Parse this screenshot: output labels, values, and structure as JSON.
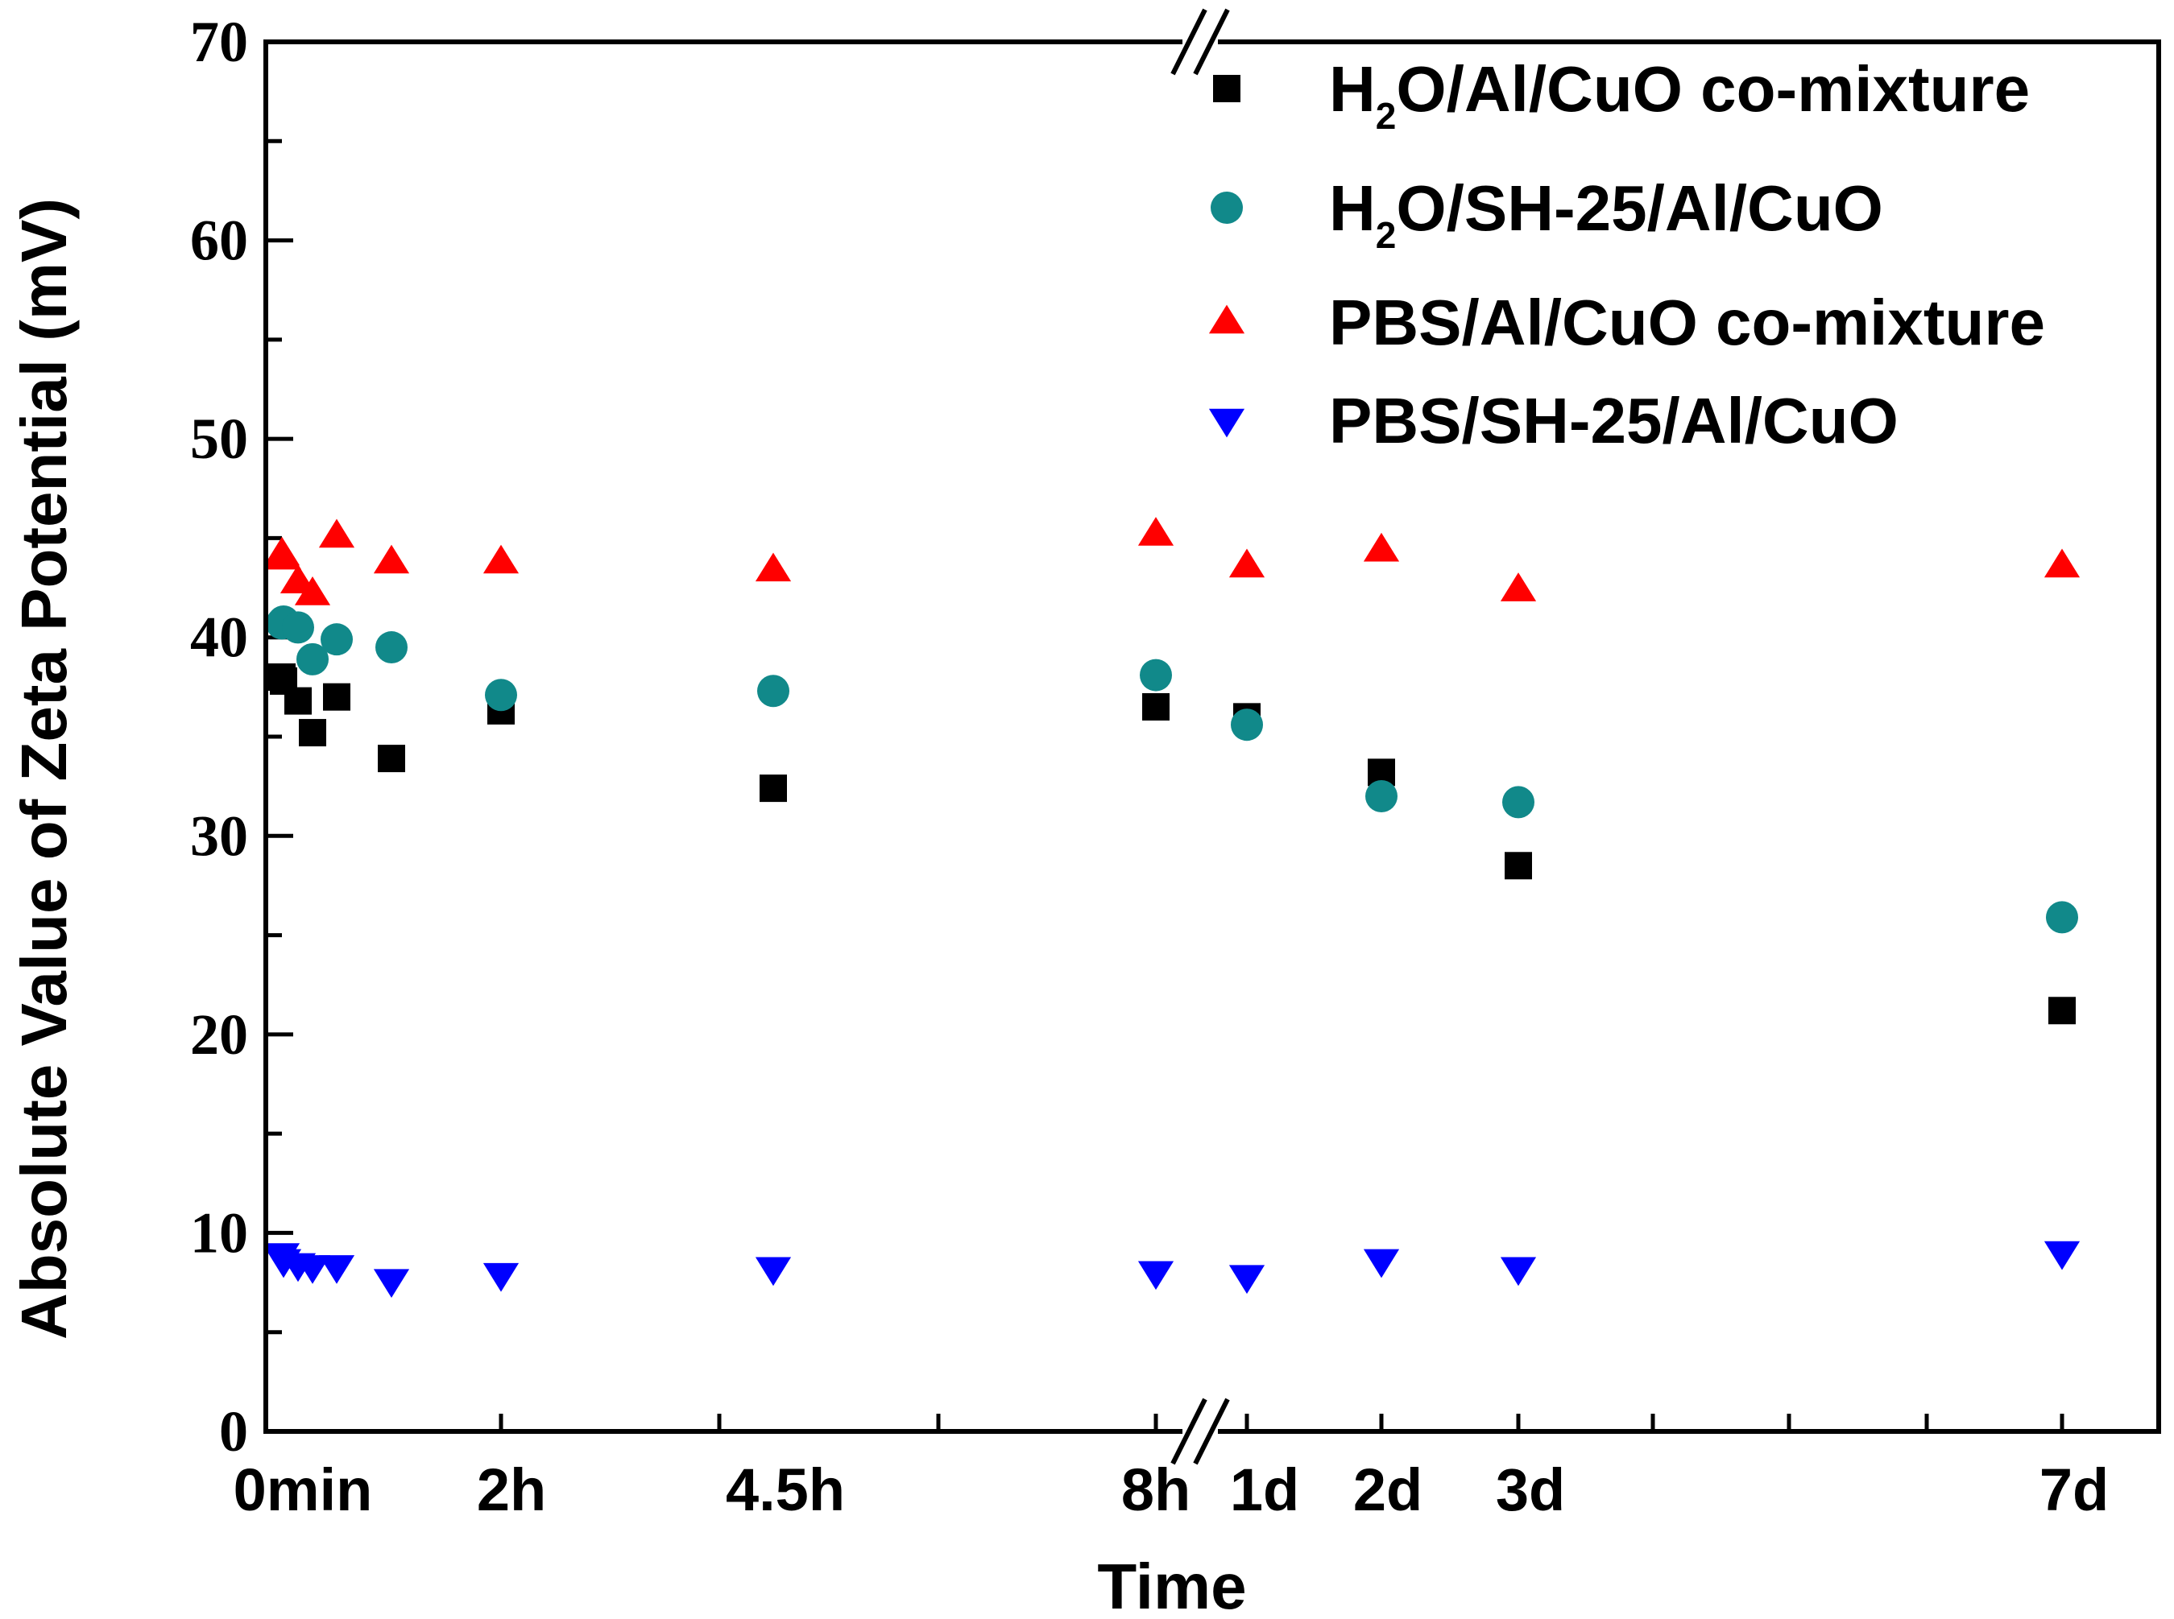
{
  "chart_data": {
    "type": "scatter",
    "title": "",
    "xlabel": "Time",
    "ylabel": "Absolute Value of Zeta Potential (mV)",
    "ylim": [
      0,
      70
    ],
    "yticks": [
      0,
      10,
      20,
      30,
      40,
      50,
      60,
      70
    ],
    "axis_break": "between 8h and 1d",
    "grid": false,
    "legend_position": "top-right",
    "x_categories": [
      "0min",
      "2h",
      "4.5h",
      "8h",
      "1d",
      "2d",
      "3d",
      "7d"
    ],
    "x_positions": [
      "0min",
      "5min",
      "15min",
      "25min",
      "40min",
      "1h",
      "2h",
      "4.5h",
      "8h",
      "1d",
      "2d",
      "3d",
      "7d"
    ],
    "series": [
      {
        "name_parts": [
          "H",
          "2",
          "O/Al/CuO co-mixture"
        ],
        "marker": "square",
        "color": "#000000",
        "values": [
          38.0,
          37.8,
          36.8,
          35.2,
          37.0,
          33.9,
          36.3,
          32.4,
          36.5,
          36.0,
          33.2,
          28.5,
          21.2
        ]
      },
      {
        "name_parts": [
          "H",
          "2",
          "O/SH-25/Al/CuO"
        ],
        "marker": "circle",
        "color": "#11898a",
        "values": [
          40.7,
          40.8,
          40.5,
          38.9,
          39.9,
          39.5,
          37.1,
          37.3,
          38.1,
          35.6,
          32.0,
          31.7,
          25.9
        ]
      },
      {
        "name_parts": [
          "PBS/Al/CuO co-mixture"
        ],
        "marker": "triangle-up",
        "color": "#ff0000",
        "values": [
          44.2,
          44.0,
          42.8,
          42.2,
          45.1,
          43.8,
          43.8,
          43.4,
          45.2,
          43.6,
          44.4,
          42.4,
          43.6
        ]
      },
      {
        "name_parts": [
          "PBS/SH-25/Al/CuO"
        ],
        "marker": "triangle-down",
        "color": "#0000ff",
        "values": [
          8.9,
          8.6,
          8.4,
          8.3,
          8.3,
          7.6,
          7.9,
          8.2,
          8.0,
          7.8,
          8.6,
          8.2,
          9.0
        ]
      }
    ]
  }
}
